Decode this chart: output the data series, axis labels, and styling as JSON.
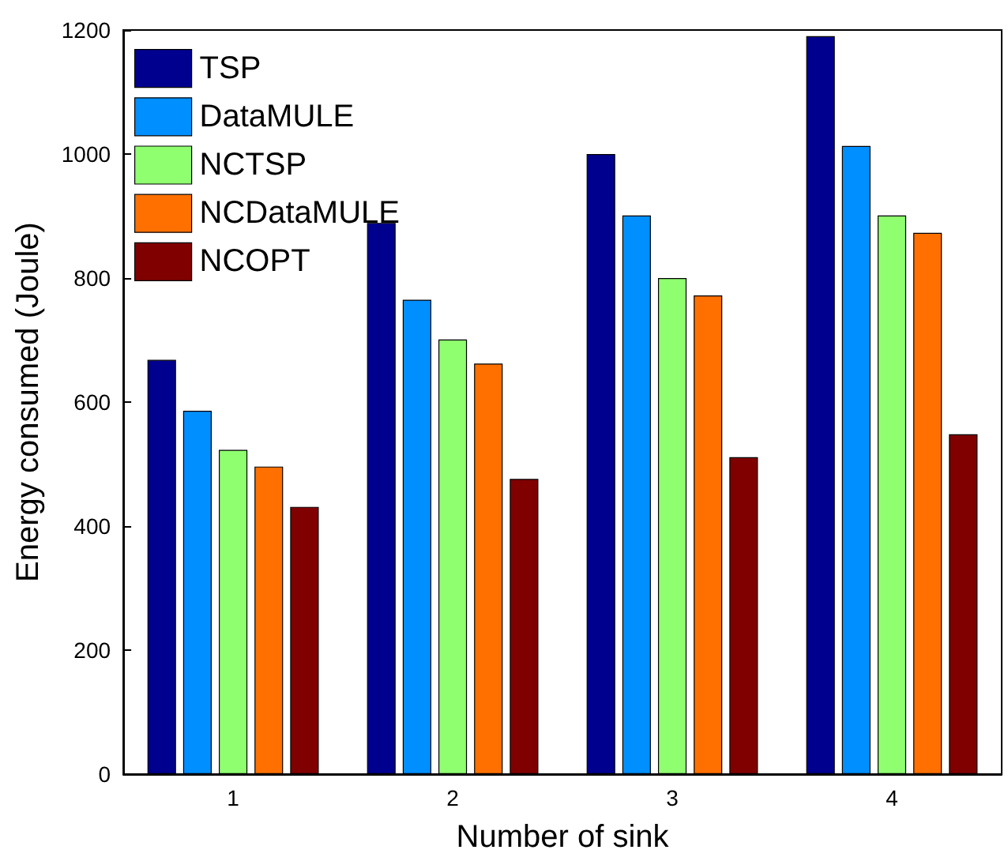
{
  "chart_data": {
    "type": "bar",
    "xlabel": "Number of sink",
    "ylabel": "Energy consumed (Joule)",
    "categories": [
      "1",
      "2",
      "3",
      "4"
    ],
    "series": [
      {
        "name": "TSP",
        "color": "#00008f",
        "values": [
          668,
          889,
          1000,
          1190
        ]
      },
      {
        "name": "DataMULE",
        "color": "#008fff",
        "values": [
          586,
          765,
          901,
          1013
        ]
      },
      {
        "name": "NCTSP",
        "color": "#8fff70",
        "values": [
          523,
          701,
          800,
          901
        ]
      },
      {
        "name": "NCDataMULE",
        "color": "#ff7000",
        "values": [
          496,
          662,
          772,
          873
        ]
      },
      {
        "name": "NCOPT",
        "color": "#800000",
        "values": [
          431,
          476,
          511,
          548
        ]
      }
    ],
    "ylim": [
      0,
      1200
    ],
    "yticks": [
      0,
      200,
      400,
      600,
      800,
      1000,
      1200
    ],
    "grid": false,
    "legend": "top left"
  }
}
